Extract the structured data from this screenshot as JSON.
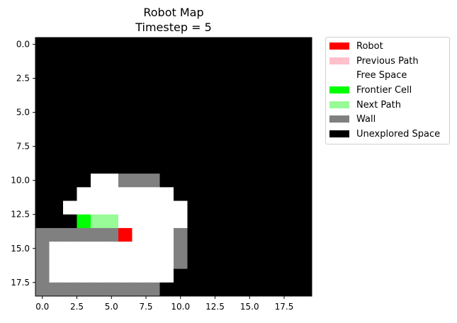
{
  "chart_data": {
    "type": "heatmap",
    "title": "Robot Map",
    "subtitle": "Timestep = 5",
    "xlim": [
      -0.5,
      19.5
    ],
    "ylim": [
      18.5,
      -0.5
    ],
    "xticks": [
      0,
      2.5,
      5,
      7.5,
      10,
      12.5,
      15,
      17.5
    ],
    "xtick_labels": [
      "0.0",
      "2.5",
      "5.0",
      "7.5",
      "10.0",
      "12.5",
      "15.0",
      "17.5"
    ],
    "yticks": [
      0,
      2.5,
      5,
      7.5,
      10,
      12.5,
      15,
      17.5
    ],
    "ytick_labels": [
      "0.0",
      "2.5",
      "5.0",
      "7.5",
      "10.0",
      "12.5",
      "15.0",
      "17.5"
    ],
    "grid": false,
    "legend_position": "outside-right",
    "categories": [
      {
        "code": 0,
        "name": "Robot",
        "color": "#ff0000"
      },
      {
        "code": 1,
        "name": "Previous Path",
        "color": "#ffc0cb"
      },
      {
        "code": 2,
        "name": "Free Space",
        "color": "#ffffff"
      },
      {
        "code": 3,
        "name": "Frontier Cell",
        "color": "#00ff00"
      },
      {
        "code": 4,
        "name": "Next Path",
        "color": "#98fb98"
      },
      {
        "code": 5,
        "name": "Wall",
        "color": "#808080"
      },
      {
        "code": 6,
        "name": "Unexplored Space",
        "color": "#000000"
      }
    ],
    "grid_values": [
      [
        6,
        6,
        6,
        6,
        6,
        6,
        6,
        6,
        6,
        6,
        6,
        6,
        6,
        6,
        6,
        6,
        6,
        6,
        6,
        6
      ],
      [
        6,
        6,
        6,
        6,
        6,
        6,
        6,
        6,
        6,
        6,
        6,
        6,
        6,
        6,
        6,
        6,
        6,
        6,
        6,
        6
      ],
      [
        6,
        6,
        6,
        6,
        6,
        6,
        6,
        6,
        6,
        6,
        6,
        6,
        6,
        6,
        6,
        6,
        6,
        6,
        6,
        6
      ],
      [
        6,
        6,
        6,
        6,
        6,
        6,
        6,
        6,
        6,
        6,
        6,
        6,
        6,
        6,
        6,
        6,
        6,
        6,
        6,
        6
      ],
      [
        6,
        6,
        6,
        6,
        6,
        6,
        6,
        6,
        6,
        6,
        6,
        6,
        6,
        6,
        6,
        6,
        6,
        6,
        6,
        6
      ],
      [
        6,
        6,
        6,
        6,
        6,
        6,
        6,
        6,
        6,
        6,
        6,
        6,
        6,
        6,
        6,
        6,
        6,
        6,
        6,
        6
      ],
      [
        6,
        6,
        6,
        6,
        6,
        6,
        6,
        6,
        6,
        6,
        6,
        6,
        6,
        6,
        6,
        6,
        6,
        6,
        6,
        6
      ],
      [
        6,
        6,
        6,
        6,
        6,
        6,
        6,
        6,
        6,
        6,
        6,
        6,
        6,
        6,
        6,
        6,
        6,
        6,
        6,
        6
      ],
      [
        6,
        6,
        6,
        6,
        6,
        6,
        6,
        6,
        6,
        6,
        6,
        6,
        6,
        6,
        6,
        6,
        6,
        6,
        6,
        6
      ],
      [
        6,
        6,
        6,
        6,
        6,
        6,
        6,
        6,
        6,
        6,
        6,
        6,
        6,
        6,
        6,
        6,
        6,
        6,
        6,
        6
      ],
      [
        6,
        6,
        6,
        6,
        2,
        2,
        5,
        5,
        5,
        6,
        6,
        6,
        6,
        6,
        6,
        6,
        6,
        6,
        6,
        6
      ],
      [
        6,
        6,
        6,
        2,
        2,
        2,
        2,
        2,
        2,
        2,
        6,
        6,
        6,
        6,
        6,
        6,
        6,
        6,
        6,
        6
      ],
      [
        6,
        6,
        2,
        2,
        2,
        2,
        2,
        2,
        2,
        2,
        2,
        6,
        6,
        6,
        6,
        6,
        6,
        6,
        6,
        6
      ],
      [
        6,
        6,
        6,
        3,
        4,
        4,
        2,
        2,
        2,
        2,
        2,
        6,
        6,
        6,
        6,
        6,
        6,
        6,
        6,
        6
      ],
      [
        5,
        5,
        5,
        5,
        5,
        5,
        0,
        2,
        2,
        2,
        5,
        6,
        6,
        6,
        6,
        6,
        6,
        6,
        6,
        6
      ],
      [
        5,
        2,
        2,
        2,
        2,
        2,
        2,
        2,
        2,
        2,
        5,
        6,
        6,
        6,
        6,
        6,
        6,
        6,
        6,
        6
      ],
      [
        5,
        2,
        2,
        2,
        2,
        2,
        2,
        2,
        2,
        2,
        5,
        6,
        6,
        6,
        6,
        6,
        6,
        6,
        6,
        6
      ],
      [
        5,
        2,
        2,
        2,
        2,
        2,
        2,
        2,
        2,
        2,
        6,
        6,
        6,
        6,
        6,
        6,
        6,
        6,
        6,
        6
      ],
      [
        5,
        5,
        5,
        5,
        5,
        5,
        5,
        5,
        5,
        6,
        6,
        6,
        6,
        6,
        6,
        6,
        6,
        6,
        6,
        6
      ]
    ]
  },
  "legend": {
    "items": [
      {
        "label": "Robot",
        "color": "#ff0000"
      },
      {
        "label": "Previous Path",
        "color": "#ffc0cb"
      },
      {
        "label": "Free Space",
        "color": "#ffffff"
      },
      {
        "label": "Frontier Cell",
        "color": "#00ff00"
      },
      {
        "label": "Next Path",
        "color": "#98fb98"
      },
      {
        "label": "Wall",
        "color": "#808080"
      },
      {
        "label": "Unexplored Space",
        "color": "#000000"
      }
    ]
  }
}
